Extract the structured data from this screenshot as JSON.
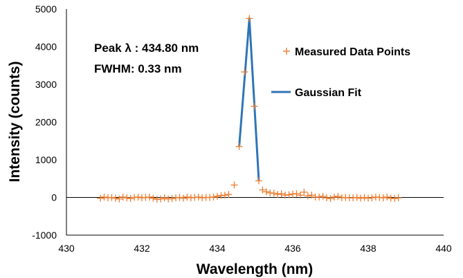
{
  "chart_data": {
    "type": "scatter",
    "title": "",
    "xlabel": "Wavelength (nm)",
    "ylabel": "Intensity (counts)",
    "xlim": [
      430,
      440
    ],
    "ylim": [
      -1000,
      5000
    ],
    "x_ticks": [
      430,
      432,
      434,
      436,
      438,
      440
    ],
    "y_ticks": [
      -1000,
      0,
      1000,
      2000,
      3000,
      4000,
      5000
    ],
    "grid": false,
    "legend_position": "right",
    "annotations": [
      "Peak λ : 434.80 nm",
      "FWHM: 0.33 nm"
    ],
    "series": [
      {
        "name": "Measured Data Points",
        "type": "scatter",
        "marker": "plus",
        "color": "#ED7D31",
        "x": [
          430.9,
          431.0,
          431.1,
          431.2,
          431.3,
          431.4,
          431.5,
          431.6,
          431.7,
          431.8,
          431.9,
          432.0,
          432.1,
          432.2,
          432.3,
          432.4,
          432.5,
          432.6,
          432.7,
          432.8,
          432.9,
          433.0,
          433.1,
          433.2,
          433.3,
          433.4,
          433.5,
          433.6,
          433.7,
          433.8,
          433.9,
          434.0,
          434.1,
          434.2,
          434.3,
          434.45,
          434.58,
          434.72,
          434.85,
          434.98,
          435.1,
          435.2,
          435.3,
          435.4,
          435.5,
          435.6,
          435.7,
          435.8,
          435.9,
          436.0,
          436.1,
          436.2,
          436.3,
          436.4,
          436.5,
          436.6,
          436.7,
          436.8,
          436.9,
          437.0,
          437.1,
          437.2,
          437.3,
          437.4,
          437.5,
          437.6,
          437.7,
          437.8,
          437.9,
          438.0,
          438.1,
          438.2,
          438.3,
          438.4,
          438.5,
          438.6,
          438.7,
          438.8
        ],
        "y": [
          -20,
          10,
          -10,
          0,
          -20,
          -40,
          10,
          -10,
          -30,
          0,
          10,
          -10,
          0,
          10,
          -20,
          -50,
          -40,
          -10,
          -40,
          -30,
          -10,
          0,
          -20,
          10,
          -10,
          0,
          10,
          -10,
          0,
          0,
          10,
          30,
          50,
          60,
          80,
          330,
          1350,
          3330,
          4750,
          2420,
          440,
          200,
          150,
          120,
          110,
          80,
          100,
          60,
          70,
          90,
          100,
          60,
          140,
          40,
          60,
          10,
          10,
          30,
          -10,
          -30,
          10,
          30,
          -10,
          0,
          -10,
          -10,
          0,
          -20,
          0,
          -20,
          -10,
          10,
          0,
          -10,
          10,
          -20,
          -30,
          -10
        ]
      },
      {
        "name": "Gaussian Fit",
        "type": "line",
        "color": "#2E75B6",
        "x": [
          434.58,
          434.85,
          435.1
        ],
        "y": [
          1350,
          4750,
          440
        ]
      }
    ]
  }
}
